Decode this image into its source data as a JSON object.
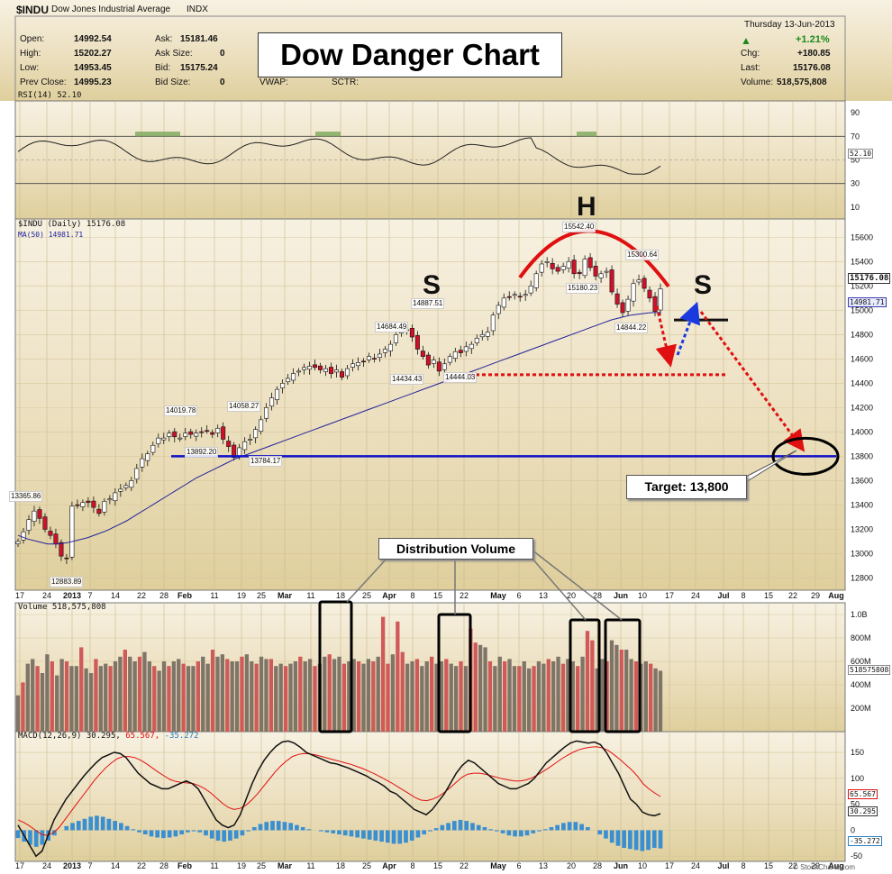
{
  "header": {
    "symbol": "$INDU",
    "name": "Dow Jones Industrial Average",
    "exchange": "INDX",
    "brand": "© StockCharts.com",
    "open_label": "Open:",
    "open": "14992.54",
    "high_label": "High:",
    "high": "15202.27",
    "low_label": "Low:",
    "low": "14953.45",
    "prevclose_label": "Prev Close:",
    "prevclose": "14995.23",
    "ask_label": "Ask:",
    "ask": "15181.46",
    "asksize_label": "Ask Size:",
    "asksize": "0",
    "bid_label": "Bid:",
    "bid": "15175.24",
    "bidsize_label": "Bid Size:",
    "bidsize": "0",
    "vwap_label": "VWAP:",
    "sctr_label": "SCTR:",
    "date": "Thursday   13-Jun-2013",
    "pct": "+1.21%",
    "chg_label": "Chg:",
    "chg": "+180.85",
    "last_label": "Last:",
    "last": "15176.08",
    "volume_label": "Volume:",
    "volume": "518,575,808"
  },
  "annotations": {
    "title": "Dow Danger Chart",
    "target": "Target: 13,800",
    "distribution": "Distribution Volume",
    "left_shoulder": "S",
    "head": "H",
    "right_shoulder": "S"
  },
  "panels": {
    "rsi_label": "RSI(14) 52.10",
    "rsi_value_tag": "52.10",
    "price_label": "$INDU (Daily) 15176.08",
    "ma_label": "MA(50) 14981.71",
    "price_tag": "15176.08",
    "ma_tag": "14981.71",
    "volume_label": "Volume 518,575,808",
    "volume_tag": "518575808",
    "macd_label": "MACD(12,26,9)",
    "macd_v1": "30.295,",
    "macd_v2": "65.567,",
    "macd_v3": "-35.272",
    "macd_tag1": "65.567",
    "macd_tag2": "30.295",
    "macd_tag3": "-35.272"
  },
  "price_labels": [
    {
      "text": "13365.86",
      "series": "local high"
    },
    {
      "text": "12883.89",
      "series": "low"
    },
    {
      "text": "14019.78",
      "series": "high"
    },
    {
      "text": "13892.20",
      "series": "low"
    },
    {
      "text": "14058.27",
      "series": "high"
    },
    {
      "text": "13784.17",
      "series": "low"
    },
    {
      "text": "14684.49",
      "series": "high"
    },
    {
      "text": "14434.43",
      "series": "low"
    },
    {
      "text": "14887.51",
      "series": "high"
    },
    {
      "text": "14444.03",
      "series": "low"
    },
    {
      "text": "15542.40",
      "series": "high"
    },
    {
      "text": "15180.23",
      "series": "low"
    },
    {
      "text": "15300.64",
      "series": "high"
    },
    {
      "text": "14844.22",
      "series": "low"
    }
  ],
  "chart_data": {
    "type": "line",
    "title": "Dow Danger Chart",
    "y_ticks_price": [
      "12800",
      "13000",
      "13200",
      "13400",
      "13600",
      "13800",
      "14000",
      "14200",
      "14400",
      "14600",
      "14800",
      "15000",
      "15200",
      "15400",
      "15600"
    ],
    "y_ticks_rsi": [
      "10",
      "30",
      "50",
      "70",
      "90"
    ],
    "y_ticks_volume": [
      "200M",
      "400M",
      "600M",
      "800M",
      "1.0B"
    ],
    "y_ticks_macd": [
      "-50",
      "0",
      "50",
      "100",
      "150"
    ],
    "x_ticks": [
      "17",
      "24",
      "2013",
      "7",
      "14",
      "22",
      "28",
      "Feb",
      "11",
      "19",
      "25",
      "Mar",
      "11",
      "18",
      "25",
      "Apr",
      "8",
      "15",
      "22",
      "May",
      "6",
      "13",
      "20",
      "28",
      "Jun",
      "10",
      "17",
      "24",
      "Jul",
      "8",
      "15",
      "22",
      "29",
      "Aug"
    ],
    "ylim_price": [
      12700,
      15750
    ],
    "ylim_rsi": [
      0,
      100
    ],
    "ylim_volume": [
      0,
      1100
    ],
    "ylim_macd": [
      -60,
      190
    ],
    "price_close": [
      13100,
      13180,
      13280,
      13350,
      13290,
      13200,
      13150,
      13080,
      12980,
      12960,
      13390,
      13400,
      13420,
      13420,
      13380,
      13330,
      13430,
      13450,
      13500,
      13530,
      13560,
      13600,
      13700,
      13780,
      13820,
      13890,
      13950,
      13950,
      13990,
      13960,
      13950,
      13990,
      13980,
      13990,
      14000,
      14010,
      13980,
      14030,
      13940,
      13880,
      13790,
      13870,
      13920,
      13940,
      14020,
      14100,
      14200,
      14280,
      14350,
      14400,
      14440,
      14480,
      14500,
      14530,
      14540,
      14530,
      14510,
      14520,
      14480,
      14510,
      14450,
      14520,
      14560,
      14570,
      14580,
      14620,
      14600,
      14640,
      14680,
      14720,
      14800,
      14850,
      14840,
      14780,
      14680,
      14620,
      14550,
      14590,
      14500,
      14560,
      14620,
      14660,
      14650,
      14700,
      14720,
      14770,
      14800,
      14820,
      14960,
      15040,
      15100,
      15110,
      15130,
      15110,
      15130,
      15200,
      15300,
      15380,
      15400,
      15340,
      15320,
      15360,
      15400,
      15300,
      15300,
      15420,
      15350,
      15280,
      15300,
      15320,
      15150,
      15050,
      14980,
      15090,
      15220,
      15250,
      15180,
      15100,
      14990,
      15176
    ],
    "ma50": [
      13150,
      13120,
      13100,
      13080,
      13080,
      13090,
      13110,
      13130,
      13160,
      13190,
      13230,
      13270,
      13320,
      13370,
      13420,
      13470,
      13520,
      13570,
      13620,
      13660,
      13700,
      13740,
      13780,
      13810,
      13840,
      13870,
      13900,
      13930,
      13960,
      13990,
      14020,
      14050,
      14080,
      14110,
      14140,
      14170,
      14200,
      14230,
      14260,
      14290,
      14320,
      14350,
      14380,
      14410,
      14440,
      14470,
      14500,
      14530,
      14560,
      14590,
      14620,
      14650,
      14680,
      14710,
      14740,
      14770,
      14800,
      14830,
      14860,
      14890,
      14920,
      14940,
      14960,
      14970,
      14980,
      14982
    ],
    "volume_M": [
      310,
      420,
      580,
      620,
      560,
      500,
      660,
      600,
      480,
      620,
      600,
      560,
      560,
      720,
      540,
      500,
      620,
      560,
      580,
      560,
      600,
      640,
      700,
      640,
      600,
      640,
      680,
      600,
      560,
      520,
      600,
      560,
      600,
      620,
      580,
      560,
      560,
      600,
      640,
      580,
      700,
      640,
      660,
      620,
      600,
      600,
      640,
      660,
      600,
      580,
      640,
      620,
      620,
      560,
      580,
      560,
      580,
      600,
      640,
      600,
      620,
      560,
      580,
      640,
      660,
      620,
      640,
      580,
      600,
      620,
      600,
      580,
      620,
      600,
      640,
      980,
      580,
      660,
      940,
      680,
      580,
      600,
      620,
      560,
      600,
      640,
      580,
      600,
      620,
      580,
      560,
      600,
      560,
      880,
      760,
      740,
      720,
      600,
      560,
      640,
      600,
      620,
      560,
      560,
      600,
      540,
      560,
      600,
      580,
      620,
      600,
      640,
      580,
      620,
      600,
      560,
      640,
      860,
      780,
      540,
      620,
      600,
      780,
      740,
      700,
      700,
      620,
      600,
      580,
      600,
      580,
      540,
      520
    ],
    "macd": [
      10,
      -10,
      -30,
      -50,
      -40,
      -10,
      20,
      40,
      60,
      75,
      90,
      105,
      118,
      130,
      140,
      145,
      150,
      148,
      140,
      125,
      110,
      100,
      90,
      85,
      80,
      80,
      85,
      90,
      95,
      90,
      80,
      60,
      40,
      20,
      10,
      5,
      10,
      30,
      60,
      90,
      115,
      135,
      150,
      162,
      170,
      172,
      168,
      160,
      150,
      145,
      140,
      135,
      130,
      128,
      124,
      120,
      115,
      110,
      105,
      98,
      92,
      85,
      75,
      70,
      60,
      50,
      40,
      35,
      30,
      40,
      55,
      70,
      90,
      110,
      125,
      135,
      130,
      120,
      110,
      100,
      90,
      85,
      80,
      80,
      85,
      90,
      100,
      115,
      130,
      140,
      150,
      160,
      168,
      172,
      170,
      168,
      170,
      165,
      150,
      130,
      110,
      85,
      60,
      50,
      35,
      30,
      28,
      32
    ],
    "macd_signal": [
      20,
      15,
      8,
      0,
      -8,
      -10,
      -5,
      5,
      20,
      35,
      50,
      65,
      80,
      95,
      108,
      120,
      130,
      138,
      142,
      142,
      140,
      135,
      128,
      120,
      112,
      105,
      98,
      94,
      92,
      91,
      90,
      86,
      80,
      72,
      62,
      52,
      44,
      40,
      42,
      48,
      58,
      70,
      84,
      98,
      112,
      124,
      134,
      142,
      146,
      148,
      147,
      145,
      142,
      139,
      136,
      133,
      130,
      127,
      123,
      119,
      114,
      109,
      103,
      97,
      91,
      84,
      77,
      70,
      63,
      58,
      57,
      60,
      65,
      73,
      82,
      92,
      102,
      108,
      110,
      110,
      108,
      105,
      102,
      99,
      97,
      95,
      95,
      97,
      101,
      107,
      114,
      121,
      129,
      137,
      144,
      150,
      155,
      158,
      160,
      161,
      159,
      154,
      146,
      137,
      127,
      117,
      105,
      90,
      80,
      72,
      65
    ],
    "macd_hist": [
      -15,
      -22,
      -28,
      -32,
      -28,
      -20,
      -10,
      0,
      8,
      14,
      18,
      22,
      26,
      28,
      26,
      22,
      18,
      14,
      8,
      2,
      -4,
      -8,
      -12,
      -14,
      -15,
      -14,
      -12,
      -8,
      -4,
      -2,
      -4,
      -10,
      -16,
      -20,
      -22,
      -20,
      -16,
      -10,
      -2,
      6,
      12,
      16,
      18,
      18,
      16,
      14,
      10,
      6,
      2,
      0,
      -2,
      -4,
      -6,
      -8,
      -10,
      -12,
      -14,
      -16,
      -18,
      -20,
      -22,
      -24,
      -26,
      -26,
      -24,
      -20,
      -14,
      -8,
      -2,
      4,
      10,
      14,
      18,
      20,
      18,
      14,
      10,
      6,
      2,
      -2,
      -6,
      -10,
      -12,
      -12,
      -10,
      -6,
      -2,
      2,
      6,
      10,
      14,
      16,
      16,
      12,
      6,
      0,
      -8,
      -16,
      -24,
      -30,
      -34,
      -36,
      -38,
      -40,
      -38,
      -34,
      -35
    ]
  }
}
